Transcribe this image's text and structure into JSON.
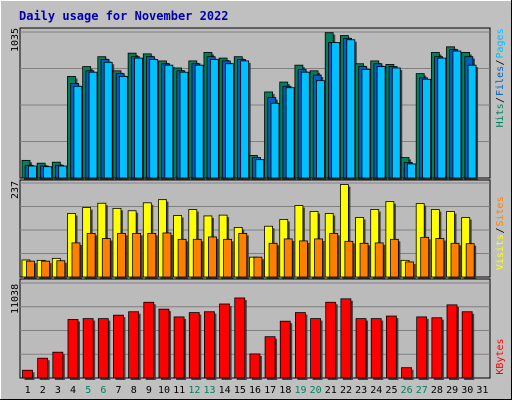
{
  "title": "Daily usage for November 2022",
  "colors": {
    "background": "#c0c0c0",
    "plot_background": "#bbbbbb",
    "title": "#0000b0",
    "hits": "#00805c",
    "files": "#0060c0",
    "pages": "#00c0ff",
    "visits": "#ffff00",
    "sites": "#ff8000",
    "kbytes": "#ff0000",
    "weekend": "#008060",
    "weekday": "#000000"
  },
  "chart_data": [
    {
      "type": "bar",
      "panel": "requests",
      "categories": [
        "1",
        "2",
        "3",
        "4",
        "5",
        "6",
        "7",
        "8",
        "9",
        "10",
        "11",
        "12",
        "13",
        "14",
        "15",
        "16",
        "17",
        "18",
        "19",
        "20",
        "21",
        "22",
        "23",
        "24",
        "25",
        "26",
        "27",
        "28",
        "29",
        "30",
        "31"
      ],
      "axis_label": "1035",
      "ylim": [
        0,
        1035
      ],
      "grid": true,
      "legend": "right",
      "legend_labels": [
        "Pages",
        "Files",
        "Hits"
      ],
      "weekend_days": [
        5,
        6,
        12,
        13,
        19,
        20,
        26,
        27
      ],
      "series": [
        {
          "name": "Hits",
          "values": [
            125,
            105,
            112,
            720,
            790,
            860,
            760,
            885,
            880,
            830,
            780,
            830,
            890,
            850,
            860,
            160,
            610,
            680,
            800,
            760,
            1030,
            1010,
            810,
            830,
            805,
            145,
            740,
            890,
            930,
            890,
            0
          ]
        },
        {
          "name": "Files",
          "values": [
            90,
            85,
            90,
            670,
            760,
            840,
            740,
            860,
            860,
            810,
            760,
            810,
            860,
            830,
            840,
            145,
            570,
            650,
            770,
            730,
            960,
            990,
            790,
            810,
            790,
            110,
            710,
            860,
            910,
            860,
            0
          ]
        },
        {
          "name": "Pages",
          "values": [
            85,
            80,
            85,
            650,
            750,
            820,
            720,
            850,
            840,
            800,
            750,
            800,
            840,
            810,
            830,
            130,
            530,
            640,
            750,
            690,
            960,
            980,
            770,
            790,
            780,
            100,
            700,
            850,
            900,
            800,
            0
          ]
        }
      ]
    },
    {
      "type": "bar",
      "panel": "visitors",
      "categories": [
        "1",
        "2",
        "3",
        "4",
        "5",
        "6",
        "7",
        "8",
        "9",
        "10",
        "11",
        "12",
        "13",
        "14",
        "15",
        "16",
        "17",
        "18",
        "19",
        "20",
        "21",
        "22",
        "23",
        "24",
        "25",
        "26",
        "27",
        "28",
        "29",
        "30",
        "31"
      ],
      "axis_label": "237",
      "ylim": [
        0,
        237
      ],
      "grid": true,
      "legend": "right",
      "legend_labels": [
        "Sites",
        "Visits"
      ],
      "series": [
        {
          "name": "Visits",
          "values": [
            43,
            42,
            47,
            160,
            175,
            186,
            173,
            167,
            187,
            195,
            155,
            170,
            154,
            156,
            125,
            50,
            128,
            145,
            180,
            165,
            160,
            233,
            150,
            170,
            190,
            42,
            185,
            170,
            165,
            150,
            0
          ]
        },
        {
          "name": "Sites",
          "values": [
            40,
            40,
            41,
            86,
            110,
            97,
            110,
            110,
            110,
            111,
            95,
            95,
            101,
            95,
            110,
            50,
            85,
            96,
            91,
            96,
            110,
            90,
            85,
            86,
            95,
            38,
            100,
            97,
            85,
            84,
            0
          ]
        }
      ]
    },
    {
      "type": "bar",
      "panel": "kbytes",
      "categories": [
        "1",
        "2",
        "3",
        "4",
        "5",
        "6",
        "7",
        "8",
        "9",
        "10",
        "11",
        "12",
        "13",
        "14",
        "15",
        "16",
        "17",
        "18",
        "19",
        "20",
        "21",
        "22",
        "23",
        "24",
        "25",
        "26",
        "27",
        "28",
        "29",
        "30",
        "31"
      ],
      "axis_label": "11038",
      "ylim": [
        0,
        11038
      ],
      "grid": true,
      "legend": "right",
      "legend_labels": [
        "KBytes"
      ],
      "series": [
        {
          "name": "KBytes",
          "values": [
            900,
            2300,
            3000,
            6800,
            6900,
            6900,
            7300,
            7700,
            8800,
            8000,
            7100,
            7600,
            7700,
            8600,
            9300,
            2800,
            4800,
            6600,
            7600,
            6900,
            8800,
            9200,
            6900,
            6900,
            7200,
            1200,
            7100,
            7000,
            8500,
            7700,
            0
          ]
        }
      ]
    }
  ]
}
